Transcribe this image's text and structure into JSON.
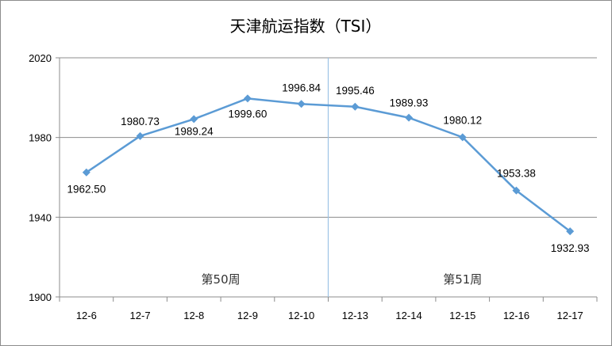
{
  "chart_data": {
    "type": "line",
    "title": "天津航运指数（TSI）",
    "categories": [
      "12-6",
      "12-7",
      "12-8",
      "12-9",
      "12-10",
      "12-13",
      "12-14",
      "12-15",
      "12-16",
      "12-17"
    ],
    "series": [
      {
        "values": [
          1962.5,
          1980.73,
          1989.24,
          1999.6,
          1996.84,
          1995.46,
          1989.93,
          1980.12,
          1953.38,
          1932.93
        ],
        "labels": [
          "1962.50",
          "1980.73",
          "1989.24",
          "1999.60",
          "1996.84",
          "1995.46",
          "1989.93",
          "1980.12",
          "1953.38",
          "1932.93"
        ],
        "color": "#5b9bd5"
      }
    ],
    "ylim": [
      1900,
      2020
    ],
    "yticks": [
      "1900",
      "1940",
      "1980",
      "2020"
    ],
    "grid": true,
    "divider_after_category": "12-10",
    "annotations": [
      "第50周",
      "第51周"
    ]
  }
}
